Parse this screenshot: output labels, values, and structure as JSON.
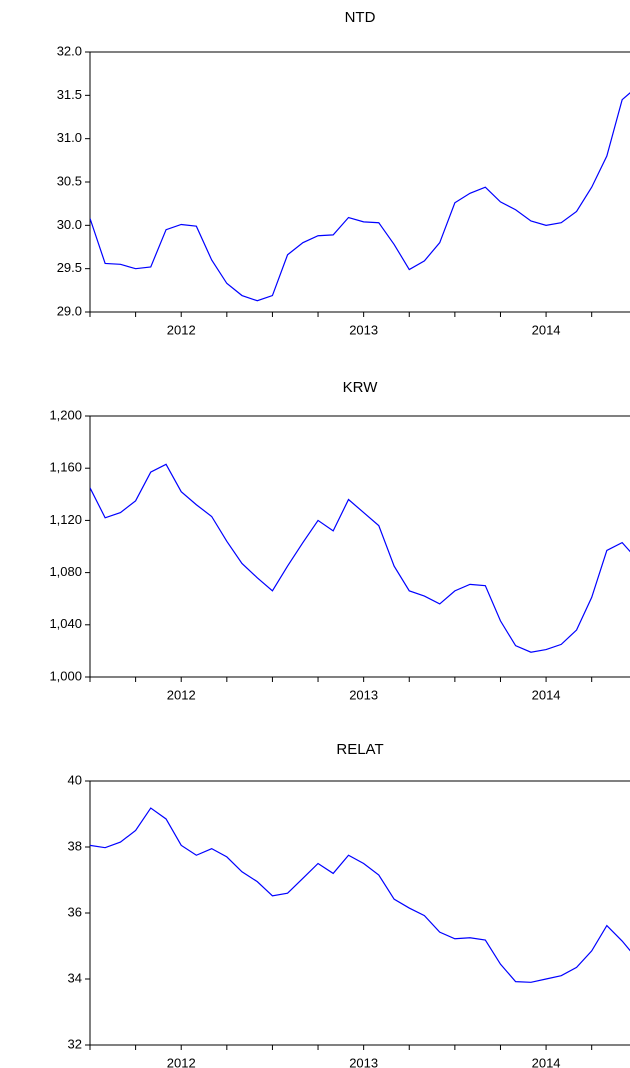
{
  "chart_data": [
    {
      "type": "line",
      "title": "NTD",
      "x": [
        2012,
        2012.083,
        2012.167,
        2012.25,
        2012.333,
        2012.417,
        2012.5,
        2012.583,
        2012.667,
        2012.75,
        2012.833,
        2012.917,
        2013,
        2013.083,
        2013.167,
        2013.25,
        2013.333,
        2013.417,
        2013.5,
        2013.583,
        2013.667,
        2013.75,
        2013.833,
        2013.917,
        2014,
        2014.083,
        2014.167,
        2014.25,
        2014.333,
        2014.417,
        2014.5,
        2014.583,
        2014.667,
        2014.75,
        2014.833,
        2014.917,
        2015
      ],
      "series": [
        {
          "color": "#0000ff",
          "values": [
            30.08,
            29.56,
            29.55,
            29.5,
            29.52,
            29.95,
            30.01,
            29.99,
            29.6,
            29.33,
            29.19,
            29.13,
            29.19,
            29.66,
            29.8,
            29.88,
            29.89,
            30.09,
            30.04,
            30.03,
            29.78,
            29.49,
            29.59,
            29.8,
            30.26,
            30.37,
            30.44,
            30.27,
            30.18,
            30.05,
            30.0,
            30.03,
            30.16,
            30.44,
            30.8,
            31.45,
            31.6
          ]
        }
      ],
      "xlim": [
        2012,
        2014.96
      ],
      "xticks": [
        2012,
        2012.25,
        2012.5,
        2012.75,
        2013,
        2013.25,
        2013.5,
        2013.75,
        2014,
        2014.25,
        2014.5,
        2014.75
      ],
      "xtick_labels": [
        {
          "value": 2012.5,
          "label": "2012"
        },
        {
          "value": 2013.5,
          "label": "2013"
        },
        {
          "value": 2014.5,
          "label": "2014"
        }
      ],
      "ylim": [
        29,
        32
      ],
      "yticks": [
        {
          "value": 29,
          "label": "29.0"
        },
        29.5,
        {
          "value": 30,
          "label": "30.0"
        },
        30.5,
        {
          "value": 31,
          "label": "31.0"
        },
        31.5,
        {
          "value": 32,
          "label": "32.0"
        }
      ]
    },
    {
      "type": "line",
      "title": "KRW",
      "x": [
        2012,
        2012.083,
        2012.167,
        2012.25,
        2012.333,
        2012.417,
        2012.5,
        2012.583,
        2012.667,
        2012.75,
        2012.833,
        2012.917,
        2013,
        2013.083,
        2013.167,
        2013.25,
        2013.333,
        2013.417,
        2013.5,
        2013.583,
        2013.667,
        2013.75,
        2013.833,
        2013.917,
        2014,
        2014.083,
        2014.167,
        2014.25,
        2014.333,
        2014.417,
        2014.5,
        2014.583,
        2014.667,
        2014.75,
        2014.833,
        2014.917,
        2015
      ],
      "series": [
        {
          "color": "#0000ff",
          "values": [
            1145,
            1122,
            1126,
            1135,
            1157,
            1163,
            1142,
            1132,
            1123,
            1104,
            1087,
            1076,
            1066,
            1085,
            1103,
            1120,
            1112,
            1136,
            1126,
            1116,
            1085,
            1066,
            1062,
            1056,
            1066,
            1071,
            1070,
            1043,
            1024,
            1019,
            1021,
            1025,
            1036,
            1061,
            1097,
            1103,
            1090
          ]
        }
      ],
      "xlim": [
        2012,
        2014.96
      ],
      "xticks": [
        2012,
        2012.25,
        2012.5,
        2012.75,
        2013,
        2013.25,
        2013.5,
        2013.75,
        2014,
        2014.25,
        2014.5,
        2014.75
      ],
      "xtick_labels": [
        {
          "value": 2012.5,
          "label": "2012"
        },
        {
          "value": 2013.5,
          "label": "2013"
        },
        {
          "value": 2014.5,
          "label": "2014"
        }
      ],
      "ylim": [
        1000,
        1200
      ],
      "yticks": [
        {
          "value": 1000,
          "label": "1,000"
        },
        {
          "value": 1040,
          "label": "1,040"
        },
        {
          "value": 1080,
          "label": "1,080"
        },
        {
          "value": 1120,
          "label": "1,120"
        },
        {
          "value": 1160,
          "label": "1,160"
        },
        {
          "value": 1200,
          "label": "1,200"
        }
      ]
    },
    {
      "type": "line",
      "title": "RELAT",
      "x": [
        2012,
        2012.083,
        2012.167,
        2012.25,
        2012.333,
        2012.417,
        2012.5,
        2012.583,
        2012.667,
        2012.75,
        2012.833,
        2012.917,
        2013,
        2013.083,
        2013.167,
        2013.25,
        2013.333,
        2013.417,
        2013.5,
        2013.583,
        2013.667,
        2013.75,
        2013.833,
        2013.917,
        2014,
        2014.083,
        2014.167,
        2014.25,
        2014.333,
        2014.417,
        2014.5,
        2014.583,
        2014.667,
        2014.75,
        2014.833,
        2014.917,
        2015
      ],
      "series": [
        {
          "color": "#0000ff",
          "values": [
            38.05,
            37.98,
            38.15,
            38.5,
            39.18,
            38.85,
            38.05,
            37.75,
            37.95,
            37.7,
            37.25,
            36.95,
            36.52,
            36.6,
            37.05,
            37.5,
            37.2,
            37.75,
            37.5,
            37.15,
            36.42,
            36.15,
            35.92,
            35.42,
            35.22,
            35.25,
            35.18,
            34.45,
            33.92,
            33.9,
            34.0,
            34.1,
            34.35,
            34.85,
            35.62,
            35.15,
            34.6
          ]
        }
      ],
      "xlim": [
        2012,
        2014.96
      ],
      "xticks": [
        2012,
        2012.25,
        2012.5,
        2012.75,
        2013,
        2013.25,
        2013.5,
        2013.75,
        2014,
        2014.25,
        2014.5,
        2014.75
      ],
      "xtick_labels": [
        {
          "value": 2012.5,
          "label": "2012"
        },
        {
          "value": 2013.5,
          "label": "2013"
        },
        {
          "value": 2014.5,
          "label": "2014"
        }
      ],
      "ylim": [
        32,
        40
      ],
      "yticks": [
        32,
        34,
        36,
        38,
        40
      ]
    }
  ]
}
